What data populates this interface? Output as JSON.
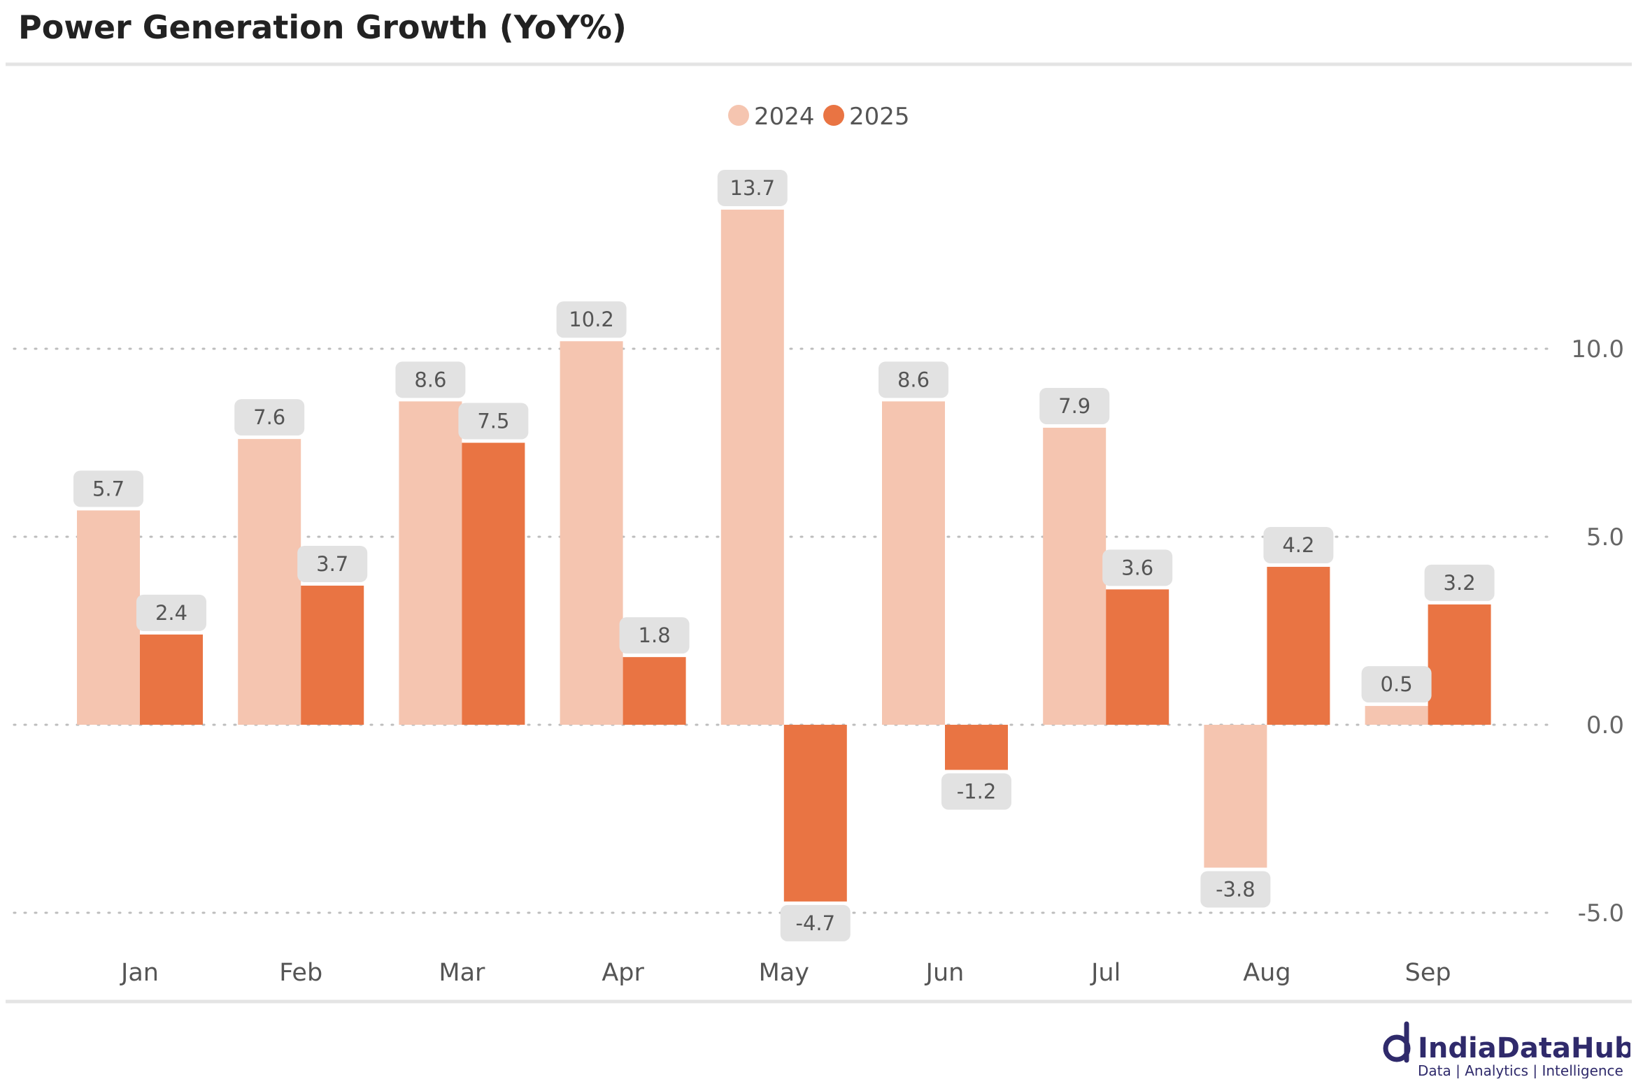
{
  "title": "Power Generation Growth (YoY%)",
  "brand": {
    "name": "IndiaDataHub",
    "tagline": "Data | Analytics | Intelligence",
    "color": "#2f2a6b"
  },
  "chart_data": {
    "type": "bar",
    "title": "Power Generation Growth (YoY%)",
    "categories": [
      "Jan",
      "Feb",
      "Mar",
      "Apr",
      "May",
      "Jun",
      "Jul",
      "Aug",
      "Sep"
    ],
    "series": [
      {
        "name": "2024",
        "color": "#f5c5b0",
        "values": [
          5.7,
          7.6,
          8.6,
          10.2,
          13.7,
          8.6,
          7.9,
          -3.8,
          0.5
        ]
      },
      {
        "name": "2025",
        "color": "#e97443",
        "values": [
          2.4,
          3.7,
          7.5,
          1.8,
          -4.7,
          -1.2,
          3.6,
          4.2,
          3.2
        ]
      }
    ],
    "yticks": [
      10.0,
      5.0,
      0.0,
      -5.0
    ],
    "ytick_labels": [
      "10.0",
      "5.0",
      "0.0",
      "-5.0"
    ],
    "ylim": [
      -5.8,
      15.5
    ],
    "y_axis_side": "right",
    "grid": "horizontal dotted",
    "legend": "top-center",
    "xlabel": "",
    "ylabel": ""
  }
}
